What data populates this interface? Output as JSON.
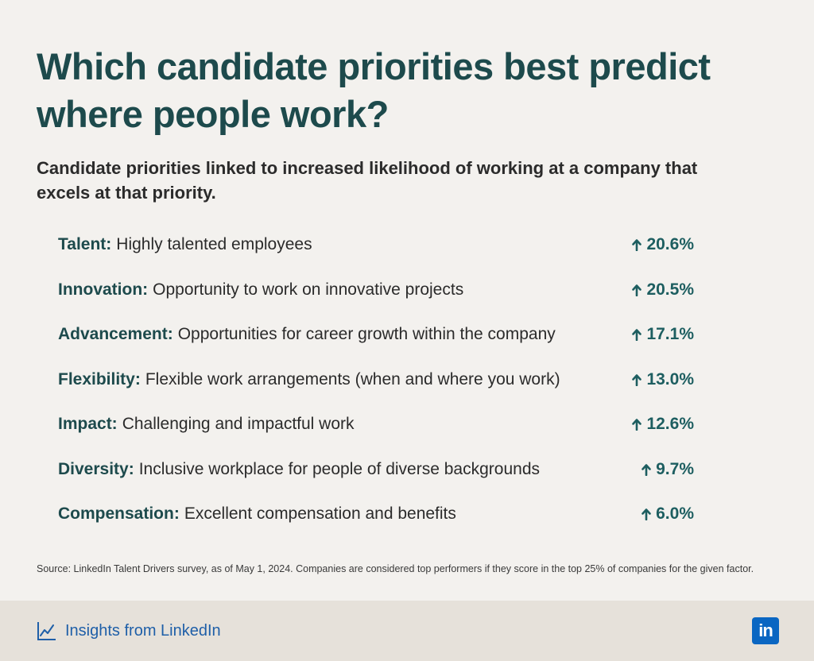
{
  "title": "Which candidate priorities best predict where people work?",
  "subtitle": "Candidate priorities linked to increased likelihood of working at a company that excels at that priority.",
  "chart_data": {
    "type": "table",
    "title": "Which candidate priorities best predict where people work?",
    "subtitle": "Candidate priorities linked to increased likelihood of working at a company that excels at that priority.",
    "rows": [
      {
        "label": "Talent:",
        "description": "Highly talented employees",
        "value": 20.6,
        "value_text": "20.6%"
      },
      {
        "label": "Innovation:",
        "description": "Opportunity to work on innovative projects",
        "value": 20.5,
        "value_text": "20.5%"
      },
      {
        "label": "Advancement:",
        "description": "Opportunities for career growth within the company",
        "value": 17.1,
        "value_text": "17.1%"
      },
      {
        "label": "Flexibility:",
        "description": "Flexible work arrangements (when and where you work)",
        "value": 13.0,
        "value_text": "13.0%"
      },
      {
        "label": "Impact:",
        "description": "Challenging and impactful work",
        "value": 12.6,
        "value_text": "12.6%"
      },
      {
        "label": "Diversity:",
        "description": "Inclusive workplace for people of diverse backgrounds",
        "value": 9.7,
        "value_text": "9.7%"
      },
      {
        "label": "Compensation:",
        "description": "Excellent compensation and benefits",
        "value": 6.0,
        "value_text": "6.0%"
      }
    ],
    "value_icon": "arrow-up-icon"
  },
  "source": "Source: LinkedIn Talent Drivers survey, as of May 1, 2024. Companies are considered top performers if they score in the top 25% of companies for the given factor.",
  "footer": {
    "brand_label": "Insights from LinkedIn",
    "brand_icon": "line-chart-icon",
    "logo_text": "in"
  },
  "colors": {
    "background": "#f3f1ee",
    "footer_background": "#e6e1da",
    "title": "#1d4a4c",
    "value": "#1d5e60",
    "brand": "#1f5fa8",
    "linkedin_blue": "#0a66c2"
  }
}
